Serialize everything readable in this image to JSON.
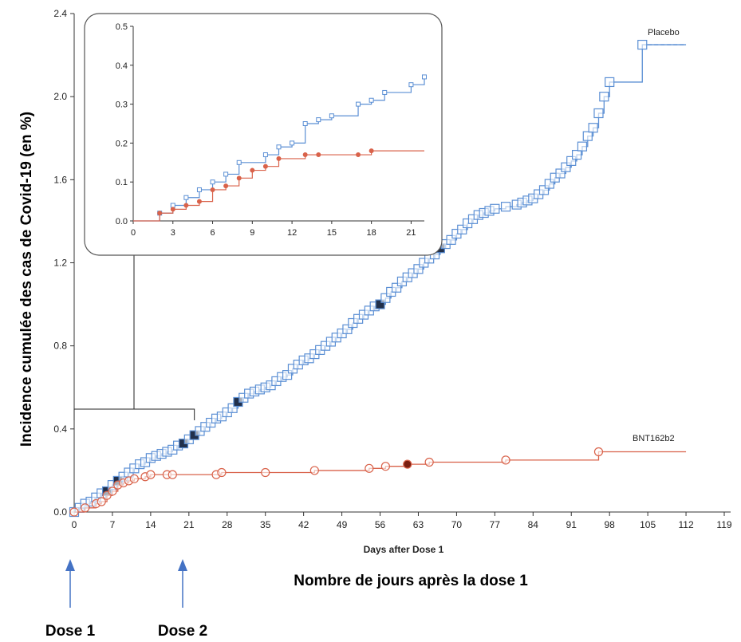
{
  "chart_data": {
    "type": "line",
    "ylabel": "Incidence cumulée des cas de Covid-19 (en %)",
    "xlabel": "Days after Dose 1",
    "xlabel_fr": "Nombre de jours après la dose 1",
    "xlim": [
      0,
      119
    ],
    "ylim": [
      0,
      2.4
    ],
    "x_ticks": [
      "0",
      "7",
      "14",
      "21",
      "28",
      "35",
      "42",
      "49",
      "56",
      "63",
      "70",
      "77",
      "84",
      "91",
      "98",
      "105",
      "112",
      "119"
    ],
    "y_ticks": [
      "0.0",
      "0.4",
      "0.8",
      "1.2",
      "1.6",
      "2.0",
      "2.4"
    ],
    "colors": {
      "placebo": "#5b8fd4",
      "bnt": "#d9624a",
      "placebo_filled": "#22304a",
      "bnt_filled": "#7a1e10"
    },
    "series": [
      {
        "name": "Placebo",
        "x": [
          0,
          1,
          2,
          3,
          4,
          5,
          6,
          7,
          8,
          9,
          10,
          11,
          12,
          13,
          14,
          15,
          16,
          17,
          18,
          19,
          20,
          21,
          22,
          23,
          24,
          25,
          26,
          27,
          28,
          29,
          30,
          31,
          32,
          33,
          34,
          35,
          36,
          37,
          38,
          39,
          40,
          41,
          42,
          43,
          44,
          45,
          46,
          47,
          48,
          49,
          50,
          51,
          52,
          53,
          54,
          55,
          56,
          57,
          58,
          59,
          60,
          61,
          62,
          63,
          64,
          65,
          66,
          67,
          68,
          69,
          70,
          71,
          72,
          73,
          74,
          75,
          76,
          77,
          78,
          79,
          80,
          81,
          82,
          83,
          84,
          85,
          86,
          87,
          88,
          89,
          90,
          91,
          92,
          93,
          94,
          95,
          96,
          97,
          98,
          99,
          100,
          101,
          102,
          103,
          104,
          105,
          106,
          107,
          108,
          109,
          110,
          111,
          112
        ],
        "y": [
          0.0,
          0.02,
          0.04,
          0.05,
          0.07,
          0.09,
          0.1,
          0.13,
          0.15,
          0.17,
          0.19,
          0.21,
          0.23,
          0.24,
          0.26,
          0.27,
          0.28,
          0.29,
          0.3,
          0.32,
          0.33,
          0.35,
          0.37,
          0.39,
          0.41,
          0.43,
          0.45,
          0.46,
          0.48,
          0.5,
          0.53,
          0.55,
          0.57,
          0.58,
          0.59,
          0.6,
          0.61,
          0.63,
          0.65,
          0.66,
          0.69,
          0.71,
          0.73,
          0.74,
          0.76,
          0.78,
          0.8,
          0.82,
          0.84,
          0.86,
          0.88,
          0.91,
          0.93,
          0.95,
          0.97,
          0.99,
          1.0,
          1.03,
          1.06,
          1.08,
          1.11,
          1.13,
          1.15,
          1.17,
          1.2,
          1.22,
          1.24,
          1.27,
          1.29,
          1.31,
          1.34,
          1.36,
          1.39,
          1.41,
          1.43,
          1.44,
          1.45,
          1.46,
          1.46,
          1.47,
          1.47,
          1.48,
          1.49,
          1.5,
          1.51,
          1.53,
          1.55,
          1.58,
          1.61,
          1.63,
          1.66,
          1.69,
          1.72,
          1.76,
          1.81,
          1.85,
          1.92,
          2.0,
          2.07,
          2.07,
          2.07,
          2.07,
          2.07,
          2.07,
          2.25,
          2.25,
          2.25,
          2.25,
          2.25,
          2.25,
          2.25,
          2.25,
          2.25
        ],
        "filled_markers_x": [
          6,
          8,
          20,
          22,
          30,
          56,
          67
        ]
      },
      {
        "name": "BNT162b2",
        "x": [
          0,
          2,
          4,
          5,
          6,
          7,
          8,
          9,
          10,
          11,
          13,
          14,
          17,
          18,
          26,
          27,
          35,
          44,
          54,
          57,
          61,
          65,
          79,
          96,
          112
        ],
        "y": [
          0.0,
          0.02,
          0.04,
          0.05,
          0.08,
          0.1,
          0.13,
          0.14,
          0.15,
          0.16,
          0.17,
          0.18,
          0.18,
          0.18,
          0.18,
          0.19,
          0.19,
          0.2,
          0.21,
          0.22,
          0.23,
          0.24,
          0.25,
          0.29,
          0.29
        ],
        "filled_markers_x": [
          61
        ]
      }
    ],
    "inset": {
      "xlim": [
        0,
        22
      ],
      "ylim": [
        0,
        0.5
      ],
      "x_ticks": [
        "0",
        "3",
        "6",
        "9",
        "12",
        "15",
        "18",
        "21"
      ],
      "y_ticks": [
        "0.0",
        "0.1",
        "0.2",
        "0.3",
        "0.4",
        "0.5"
      ],
      "placebo": {
        "x": [
          0,
          1,
          2,
          3,
          4,
          5,
          6,
          7,
          8,
          9,
          10,
          11,
          12,
          13,
          14,
          15,
          16,
          17,
          18,
          19,
          20,
          21,
          22
        ],
        "y": [
          0.0,
          0.0,
          0.02,
          0.04,
          0.06,
          0.08,
          0.1,
          0.12,
          0.15,
          0.15,
          0.17,
          0.19,
          0.2,
          0.25,
          0.26,
          0.27,
          0.27,
          0.3,
          0.31,
          0.33,
          0.33,
          0.35,
          0.37
        ]
      },
      "bnt": {
        "x": [
          0,
          2,
          3,
          4,
          5,
          6,
          7,
          8,
          9,
          10,
          11,
          13,
          14,
          17,
          18,
          22
        ],
        "y": [
          0.0,
          0.02,
          0.03,
          0.04,
          0.05,
          0.08,
          0.09,
          0.11,
          0.13,
          0.14,
          0.16,
          0.17,
          0.17,
          0.17,
          0.18,
          0.18
        ]
      }
    },
    "annotations": [
      {
        "label": "Dose 1",
        "day": 0
      },
      {
        "label": "Dose 2",
        "day": 21
      }
    ]
  }
}
